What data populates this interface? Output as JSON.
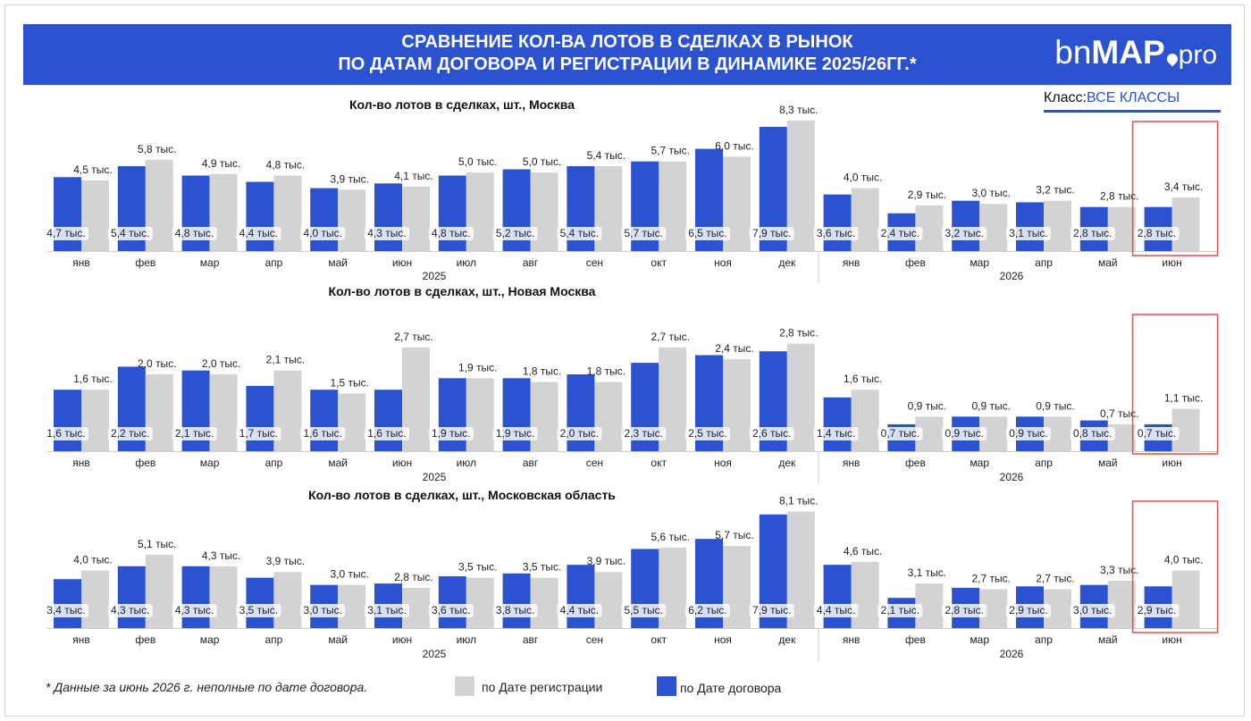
{
  "header": {
    "title_line1": "СРАВНЕНИЕ КОЛ-ВА ЛОТОВ В СДЕЛКАХ В РЫНОК",
    "title_line2": "ПО ДАТАМ ДОГОВОРА И РЕГИСТРАЦИИ В ДИНАМИКЕ 2025/26ГГ.*",
    "logo_prefix": "bn",
    "logo_main": "MAP",
    "logo_suffix": "pro"
  },
  "class_filter": {
    "label": "Класс:",
    "value": "ВСЕ КЛАССЫ"
  },
  "colors": {
    "contract": "#2B52CF",
    "registration": "#D3D3D3",
    "highlight": "#D9534F",
    "header_bg": "#2B52CF"
  },
  "chart_data": [
    {
      "type": "bar",
      "title": "Кол-во лотов в сделках, шт.,  Москва",
      "categories": [
        "янв",
        "фев",
        "мар",
        "апр",
        "май",
        "июн",
        "июл",
        "авг",
        "сен",
        "окт",
        "ноя",
        "дек",
        "янв",
        "фев",
        "мар",
        "апр",
        "май",
        "июн"
      ],
      "year_labels": [
        "2025",
        "2026"
      ],
      "unit": "тыс.",
      "series": [
        {
          "name": "по Дате договора",
          "values": [
            4.7,
            5.4,
            4.8,
            4.4,
            4.0,
            4.3,
            4.8,
            5.2,
            5.4,
            5.7,
            6.5,
            7.9,
            3.6,
            2.4,
            3.2,
            3.1,
            2.8,
            2.8
          ]
        },
        {
          "name": "по Дате регистрации",
          "values": [
            4.5,
            5.8,
            4.9,
            4.8,
            3.9,
            4.1,
            5.0,
            5.0,
            5.4,
            5.7,
            6.0,
            8.3,
            4.0,
            2.9,
            3.0,
            3.2,
            2.8,
            3.4
          ]
        }
      ],
      "highlighted_category_index": 17
    },
    {
      "type": "bar",
      "title": "Кол-во лотов в сделках, шт.,  Новая Москва",
      "categories": [
        "янв",
        "фев",
        "мар",
        "апр",
        "май",
        "июн",
        "июл",
        "авг",
        "сен",
        "окт",
        "ноя",
        "дек",
        "янв",
        "фев",
        "мар",
        "апр",
        "май",
        "июн"
      ],
      "year_labels": [
        "2025",
        "2026"
      ],
      "unit": "тыс.",
      "series": [
        {
          "name": "по Дате договора",
          "values": [
            1.6,
            2.2,
            2.1,
            1.7,
            1.6,
            1.6,
            1.9,
            1.9,
            2.0,
            2.3,
            2.5,
            2.6,
            1.4,
            0.7,
            0.9,
            0.9,
            0.8,
            0.7
          ]
        },
        {
          "name": "по Дате регистрации",
          "values": [
            1.6,
            2.0,
            2.0,
            2.1,
            1.5,
            2.7,
            1.9,
            1.8,
            1.8,
            2.7,
            2.4,
            2.8,
            1.6,
            0.9,
            0.9,
            0.9,
            0.7,
            1.1
          ]
        }
      ],
      "highlighted_category_index": 17
    },
    {
      "type": "bar",
      "title": "Кол-во лотов в сделках, шт.,  Московская область",
      "categories": [
        "янв",
        "фев",
        "мар",
        "апр",
        "май",
        "июн",
        "июл",
        "авг",
        "сен",
        "окт",
        "ноя",
        "дек",
        "янв",
        "фев",
        "мар",
        "апр",
        "май",
        "июн"
      ],
      "year_labels": [
        "2025",
        "2026"
      ],
      "unit": "тыс.",
      "series": [
        {
          "name": "по Дате договора",
          "values": [
            3.4,
            4.3,
            4.3,
            3.5,
            3.0,
            3.1,
            3.6,
            3.8,
            4.4,
            5.5,
            6.2,
            7.9,
            4.4,
            2.1,
            2.8,
            2.9,
            3.0,
            2.9
          ]
        },
        {
          "name": "по Дате регистрации",
          "values": [
            4.0,
            5.1,
            4.3,
            3.9,
            3.0,
            2.8,
            3.5,
            3.5,
            3.9,
            5.6,
            5.7,
            8.1,
            4.6,
            3.1,
            2.7,
            2.7,
            3.3,
            4.0
          ]
        }
      ],
      "highlighted_category_index": 17
    }
  ],
  "legend": {
    "registration": "по Дате регистрации",
    "contract": "по Дате договора"
  },
  "footnote": "* Данные за июнь 2026 г. неполные по дате договора."
}
